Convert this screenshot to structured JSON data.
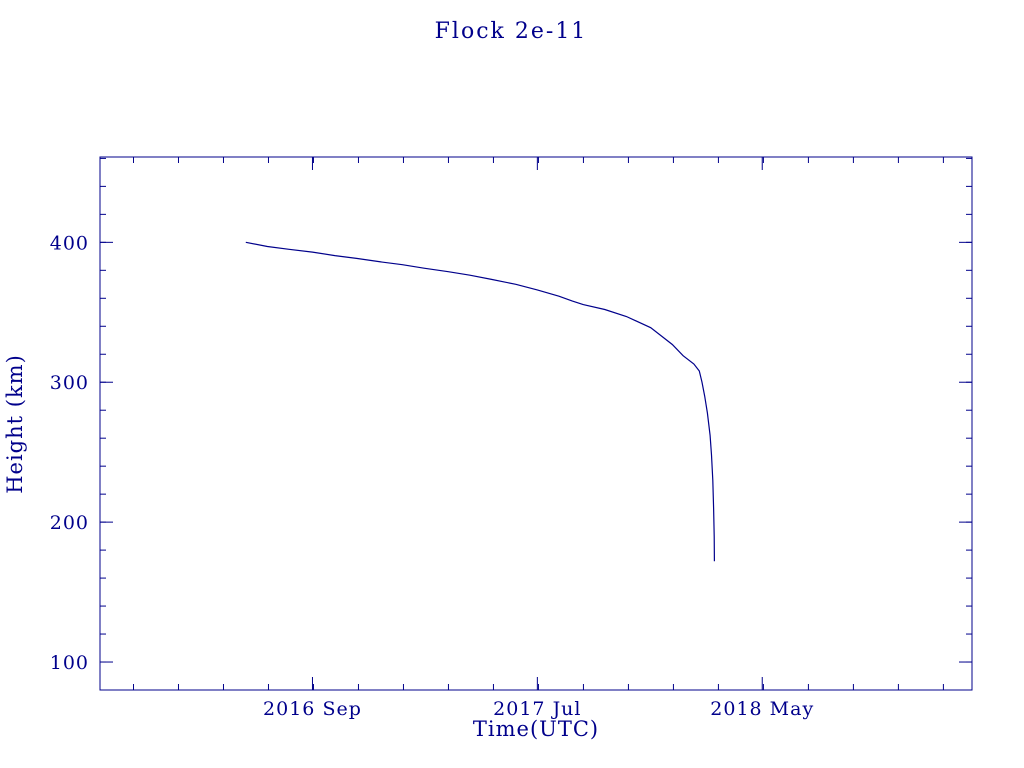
{
  "colors": {
    "plot_color": "#00008B",
    "background": "#ffffff"
  },
  "chart_data": {
    "type": "line",
    "title": "Flock 2e-11",
    "xlabel": "Time(UTC)",
    "ylabel": "Height (km)",
    "legend": "none",
    "grid": false,
    "xlim": [
      2015.88,
      2019.11
    ],
    "ylim": [
      80,
      461
    ],
    "x_ticks": [
      {
        "value": 2016.667,
        "label": "2016 Sep"
      },
      {
        "value": 2017.5,
        "label": "2017 Jul"
      },
      {
        "value": 2018.333,
        "label": "2018 May"
      }
    ],
    "y_ticks": [
      {
        "value": 100,
        "label": "100"
      },
      {
        "value": 200,
        "label": "200"
      },
      {
        "value": 300,
        "label": "300"
      },
      {
        "value": 400,
        "label": "400"
      }
    ],
    "x_minor_step": 0.166667,
    "y_minor_step": 20,
    "series": [
      {
        "name": "height",
        "points": [
          [
            2016.42,
            400.0
          ],
          [
            2016.5,
            397.0
          ],
          [
            2016.58,
            395.0
          ],
          [
            2016.667,
            393.0
          ],
          [
            2016.75,
            390.5
          ],
          [
            2016.83,
            388.5
          ],
          [
            2016.92,
            386.0
          ],
          [
            2017.0,
            384.0
          ],
          [
            2017.08,
            381.5
          ],
          [
            2017.17,
            379.0
          ],
          [
            2017.25,
            376.5
          ],
          [
            2017.33,
            373.5
          ],
          [
            2017.42,
            370.0
          ],
          [
            2017.5,
            366.0
          ],
          [
            2017.58,
            361.5
          ],
          [
            2017.63,
            358.0
          ],
          [
            2017.67,
            355.5
          ],
          [
            2017.75,
            352.0
          ],
          [
            2017.83,
            347.0
          ],
          [
            2017.92,
            339.0
          ],
          [
            2018.0,
            327.0
          ],
          [
            2018.04,
            319.0
          ],
          [
            2018.08,
            313.0
          ],
          [
            2018.1,
            308.0
          ],
          [
            2018.11,
            300.0
          ],
          [
            2018.12,
            290.0
          ],
          [
            2018.13,
            278.0
          ],
          [
            2018.14,
            262.0
          ],
          [
            2018.145,
            248.0
          ],
          [
            2018.15,
            230.0
          ],
          [
            2018.153,
            210.0
          ],
          [
            2018.155,
            190.0
          ],
          [
            2018.156,
            172.0
          ]
        ]
      }
    ]
  }
}
